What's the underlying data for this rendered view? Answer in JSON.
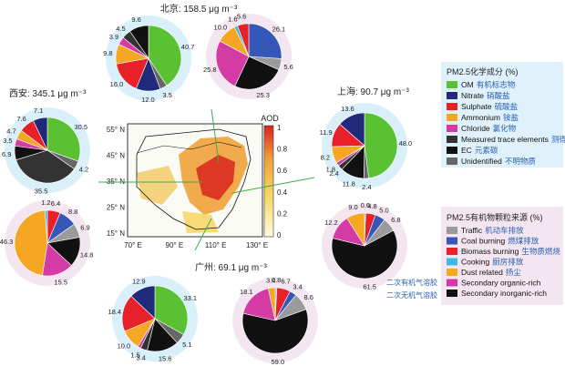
{
  "cities": [
    {
      "key": "beijing",
      "label": "北京: 158.5 μg m⁻³"
    },
    {
      "key": "xian",
      "label": "西安: 345.1 μg m⁻³"
    },
    {
      "key": "shanghai",
      "label": "上海: 90.7 μg m⁻³"
    },
    {
      "key": "guangzhou",
      "label": "广州: 69.1 μg m⁻³"
    }
  ],
  "map": {
    "aod_label": "AOD",
    "lat_ticks": [
      "55° N",
      "45° N",
      "35° N",
      "25° N",
      "15° N"
    ],
    "lon_ticks": [
      "70° E",
      "90° E",
      "110° E",
      "130° E"
    ],
    "colorbar_ticks": [
      "1",
      "0.8",
      "0.6",
      "0.4",
      "0.2",
      "0"
    ]
  },
  "legend_composition": {
    "title": "PM2.5化学成分 (%)",
    "items": [
      {
        "en": "OM",
        "zh": "有机标志物",
        "color": "#5ac232"
      },
      {
        "en": "Nitrate",
        "zh": "硝酸盐",
        "color": "#1f2a7a"
      },
      {
        "en": "Sulphate",
        "zh": "硫酸盐",
        "color": "#e8202a"
      },
      {
        "en": "Ammonium",
        "zh": "铵盐",
        "color": "#f5a623"
      },
      {
        "en": "Chloride",
        "zh": "氯化物",
        "color": "#d43ba4"
      },
      {
        "en": "Measured trace elements",
        "zh": "测得微量元素",
        "color": "#333333"
      },
      {
        "en": "EC",
        "zh": "元素碳",
        "color": "#111111"
      },
      {
        "en": "Unidentified",
        "zh": "不明物质",
        "color": "#666666"
      }
    ]
  },
  "legend_sources": {
    "title": "PM2.5有机物颗粒来源 (%)",
    "items": [
      {
        "en": "Traffic",
        "zh": "机动车排放",
        "color": "#9a9a9a"
      },
      {
        "en": "Coal burning",
        "zh": "燃煤排放",
        "color": "#3557b8"
      },
      {
        "en": "Biomass burning",
        "zh": "生物质燃烧",
        "color": "#e8202a"
      },
      {
        "en": "Cooking",
        "zh": "厨房排放",
        "color": "#3fb8e8"
      },
      {
        "en": "Dust related",
        "zh": "扬尘",
        "color": "#f5a623"
      },
      {
        "en": "Secondary organic-rich",
        "zh": "",
        "color": "#d43ba4"
      },
      {
        "en": "Secondary inorganic-rich",
        "zh": "",
        "color": "#111111"
      }
    ],
    "side_notes": [
      "二次有机气溶胶",
      "二次无机气溶胶"
    ]
  },
  "chart_data": [
    {
      "type": "pie",
      "name": "Beijing composition",
      "values": [
        40.7,
        3.5,
        12.0,
        16.0,
        9.8,
        3.9,
        4.5,
        9.6
      ],
      "labels": [
        "40.7",
        "3.5",
        "12.0",
        "16.0",
        "9.8",
        "3.9",
        "4.5",
        "9.6"
      ],
      "colors": [
        "#5ac232",
        "#666666",
        "#1f2a7a",
        "#e8202a",
        "#f5a623",
        "#d43ba4",
        "#333333",
        "#111111"
      ]
    },
    {
      "type": "pie",
      "name": "Beijing sources",
      "values": [
        26.1,
        5.6,
        25.3,
        25.8,
        10.0,
        1.6,
        5.6
      ],
      "labels": [
        "26.1",
        "5.6",
        "25.3",
        "25.8",
        "10.0",
        "1.6",
        "5.6"
      ],
      "colors": [
        "#3557b8",
        "#9a9a9a",
        "#111111",
        "#d43ba4",
        "#f5a623",
        "#3fb8e8",
        "#e8202a"
      ]
    },
    {
      "type": "pie",
      "name": "Xian composition",
      "values": [
        30.5,
        4.2,
        35.5,
        6.9,
        3.5,
        4.7,
        7.6,
        7.1
      ],
      "labels": [
        "30.5",
        "4.2",
        "35.5",
        "6.9",
        "3.5",
        "4.7",
        "7.6",
        "7.1"
      ],
      "colors": [
        "#5ac232",
        "#666666",
        "#333333",
        "#111111",
        "#d43ba4",
        "#f5a623",
        "#e8202a",
        "#1f2a7a"
      ]
    },
    {
      "type": "pie",
      "name": "Xian sources",
      "values": [
        6.4,
        8.8,
        6.9,
        14.8,
        15.5,
        46.3,
        1.2
      ],
      "labels": [
        "6.4",
        "8.8",
        "6.9",
        "14.8",
        "15.5",
        "46.3",
        "1.2"
      ],
      "colors": [
        "#e8202a",
        "#3557b8",
        "#9a9a9a",
        "#111111",
        "#d43ba4",
        "#f5a623",
        "#3fb8e8"
      ]
    },
    {
      "type": "pie",
      "name": "Shanghai composition",
      "values": [
        48.0,
        2.4,
        11.8,
        2.4,
        1.8,
        8.2,
        11.9,
        13.6
      ],
      "labels": [
        "48.0",
        "2.4",
        "11.8",
        "2.4",
        "1.8",
        "8.2",
        "11.9",
        "13.6"
      ],
      "colors": [
        "#5ac232",
        "#666666",
        "#111111",
        "#333333",
        "#d43ba4",
        "#f5a623",
        "#e8202a",
        "#1f2a7a"
      ]
    },
    {
      "type": "pie",
      "name": "Shanghai sources",
      "values": [
        0.6,
        4.8,
        5.0,
        6.8,
        61.5,
        12.2,
        9.0
      ],
      "labels": [
        "0.6",
        "4.8",
        "5.0",
        "6.8",
        "61.5",
        "12.2",
        "9.0"
      ],
      "colors": [
        "#3fb8e8",
        "#e8202a",
        "#3557b8",
        "#9a9a9a",
        "#111111",
        "#d43ba4",
        "#f5a623"
      ]
    },
    {
      "type": "pie",
      "name": "Guangzhou composition",
      "values": [
        33.1,
        5.1,
        15.6,
        3.4,
        1.5,
        10.0,
        18.4,
        12.9
      ],
      "labels": [
        "33.1",
        "5.1",
        "15.6",
        "3.4",
        "1.5",
        "10.0",
        "18.4",
        "12.9"
      ],
      "colors": [
        "#5ac232",
        "#666666",
        "#111111",
        "#333333",
        "#d43ba4",
        "#f5a623",
        "#e8202a",
        "#1f2a7a"
      ]
    },
    {
      "type": "pie",
      "name": "Guangzhou sources",
      "values": [
        0.8,
        6.7,
        3.4,
        8.6,
        59.0,
        18.1,
        3.4
      ],
      "labels": [
        "0.8",
        "6.7",
        "3.4",
        "8.6",
        "59.0",
        "18.1",
        "3.4"
      ],
      "colors": [
        "#3fb8e8",
        "#e8202a",
        "#3557b8",
        "#9a9a9a",
        "#111111",
        "#d43ba4",
        "#f5a623"
      ]
    }
  ]
}
